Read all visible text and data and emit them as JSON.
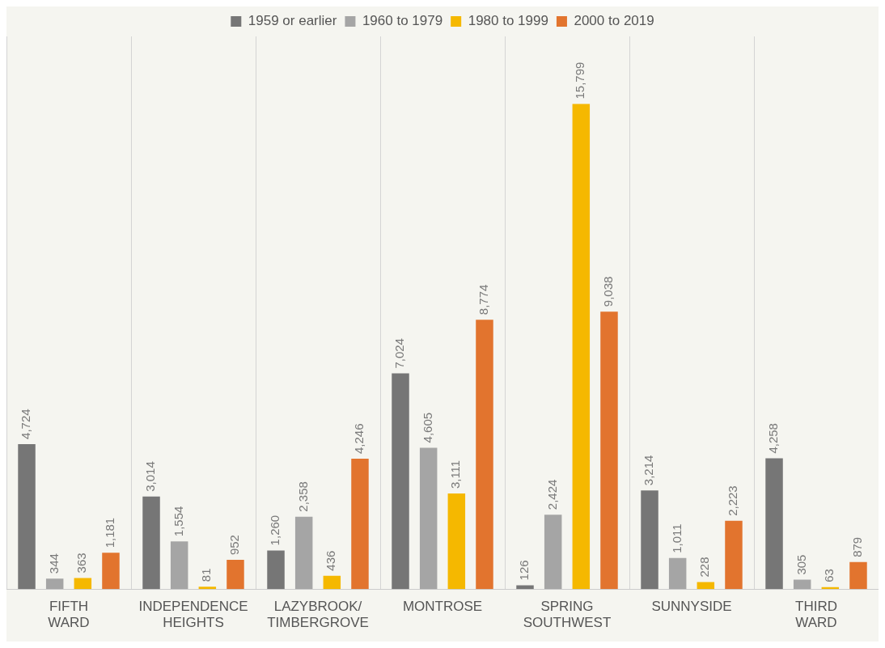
{
  "chart_data": {
    "type": "bar",
    "categories": [
      "FIFTH WARD",
      "INDEPENDENCE HEIGHTS",
      "LAZYBROOK/ TIMBERGROVE",
      "MONTROSE",
      "SPRING SOUTHWEST",
      "SUNNYSIDE",
      "THIRD WARD"
    ],
    "series": [
      {
        "name": "1959 or earlier",
        "color": "#767676",
        "values": [
          4724,
          3014,
          1260,
          7024,
          126,
          3214,
          4258
        ],
        "value_labels": [
          "4,724",
          "3,014",
          "1,260",
          "7,024",
          "126",
          "3,214",
          "4,258"
        ]
      },
      {
        "name": "1960 to 1979",
        "color": "#a5a5a5",
        "values": [
          344,
          1554,
          2358,
          4605,
          2424,
          1011,
          305
        ],
        "value_labels": [
          "344",
          "1,554",
          "2,358",
          "4,605",
          "2,424",
          "1,011",
          "305"
        ]
      },
      {
        "name": "1980 to 1999",
        "color": "#f5b800",
        "values": [
          363,
          81,
          436,
          3111,
          15799,
          228,
          63
        ],
        "value_labels": [
          "363",
          "81",
          "436",
          "3,111",
          "15,799",
          "228",
          "63"
        ]
      },
      {
        "name": "2000 to 2019",
        "color": "#e2742e",
        "values": [
          1181,
          952,
          4246,
          8774,
          9038,
          2223,
          879
        ],
        "value_labels": [
          "1,181",
          "952",
          "4,246",
          "8,774",
          "9,038",
          "2,223",
          "879"
        ]
      }
    ],
    "legend": "top",
    "grid": "x",
    "tick_labels": "x"
  }
}
